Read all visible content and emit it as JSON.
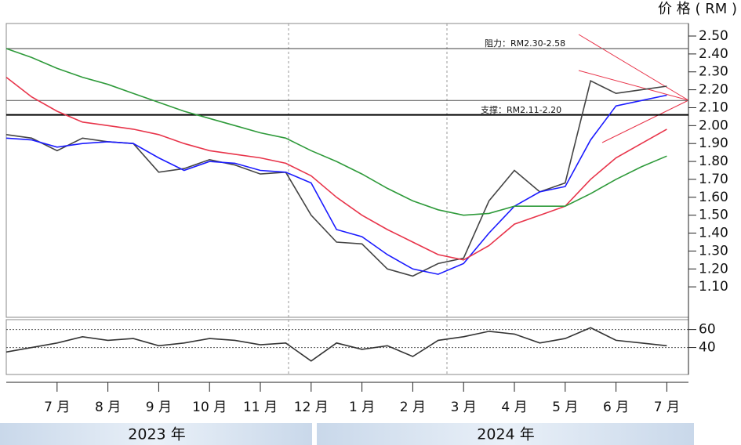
{
  "chart_data": [
    {
      "type": "line",
      "y_label": "价 格 ( RM )",
      "categories": [
        null,
        null,
        "7 月",
        null,
        "8 月",
        null,
        "9 月",
        null,
        "10 月",
        null,
        "11 月",
        null,
        "12 月",
        null,
        "1 月",
        null,
        "2 月",
        null,
        "3 月",
        null,
        "4 月",
        null,
        "5 月",
        null,
        "6 月",
        null,
        "7 月"
      ],
      "period_labels": [
        "2023 年",
        "2024 年"
      ],
      "ylim": [
        0.93,
        2.57
      ],
      "yticks": [
        {
          "value": 1.1,
          "label": "1.10"
        },
        {
          "value": 1.2,
          "label": "1.20"
        },
        {
          "value": 1.3,
          "label": "1.30"
        },
        {
          "value": 1.4,
          "label": "1.40"
        },
        {
          "value": 1.5,
          "label": "1.50"
        },
        {
          "value": 1.6,
          "label": "1.60"
        },
        {
          "value": 1.7,
          "label": "1.70"
        },
        {
          "value": 1.8,
          "label": "1.80"
        },
        {
          "value": 1.9,
          "label": "1.90"
        },
        {
          "value": 2.0,
          "label": "2.00"
        },
        {
          "value": 2.1,
          "label": "2.10"
        },
        {
          "value": 2.2,
          "label": "2.20"
        },
        {
          "value": 2.3,
          "label": "2.30"
        },
        {
          "value": 2.4,
          "label": "2.40"
        },
        {
          "value": 2.5,
          "label": "2.50"
        }
      ],
      "reference_lines": [
        2.43,
        2.14,
        2.06
      ],
      "annotations": [
        "阻力：RM2.30-2.58",
        "支撑：RM2.11-2.20"
      ],
      "series": [
        {
          "color": "#444444",
          "values": [
            1.95,
            1.93,
            1.86,
            1.93,
            1.91,
            1.9,
            1.74,
            1.76,
            1.81,
            1.78,
            1.73,
            1.74,
            1.5,
            1.35,
            1.34,
            1.2,
            1.16,
            1.23,
            1.26,
            1.58,
            1.75,
            1.63,
            1.68,
            2.25,
            2.18,
            2.2,
            2.22
          ]
        },
        {
          "color": "#1a1aff",
          "values": [
            1.93,
            1.92,
            1.88,
            1.9,
            1.91,
            1.9,
            1.82,
            1.75,
            1.8,
            1.79,
            1.75,
            1.74,
            1.68,
            1.42,
            1.38,
            1.28,
            1.2,
            1.17,
            1.23,
            1.4,
            1.55,
            1.63,
            1.66,
            1.92,
            2.11,
            2.14,
            2.17
          ]
        },
        {
          "color": "#e8344a",
          "values": [
            2.27,
            2.16,
            2.08,
            2.02,
            2.0,
            1.98,
            1.95,
            1.9,
            1.86,
            1.84,
            1.82,
            1.79,
            1.72,
            1.6,
            1.5,
            1.42,
            1.35,
            1.28,
            1.25,
            1.33,
            1.45,
            1.5,
            1.55,
            1.7,
            1.82,
            1.9,
            1.98
          ]
        },
        {
          "color": "#2e9a3a",
          "values": [
            2.43,
            2.38,
            2.32,
            2.27,
            2.23,
            2.18,
            2.13,
            2.08,
            2.04,
            2.0,
            1.96,
            1.93,
            1.86,
            1.8,
            1.73,
            1.65,
            1.58,
            1.53,
            1.5,
            1.51,
            1.55,
            1.55,
            1.55,
            1.62,
            1.7,
            1.77,
            1.83
          ]
        }
      ]
    },
    {
      "type": "line",
      "ylim": [
        10,
        71
      ],
      "yticks": [
        40,
        60
      ],
      "series": [
        {
          "color": "#333333",
          "values": [
            35,
            40,
            45,
            52,
            48,
            50,
            42,
            45,
            50,
            48,
            43,
            45,
            25,
            45,
            38,
            42,
            30,
            48,
            52,
            58,
            55,
            45,
            50,
            62,
            48,
            45,
            42
          ]
        }
      ]
    }
  ]
}
